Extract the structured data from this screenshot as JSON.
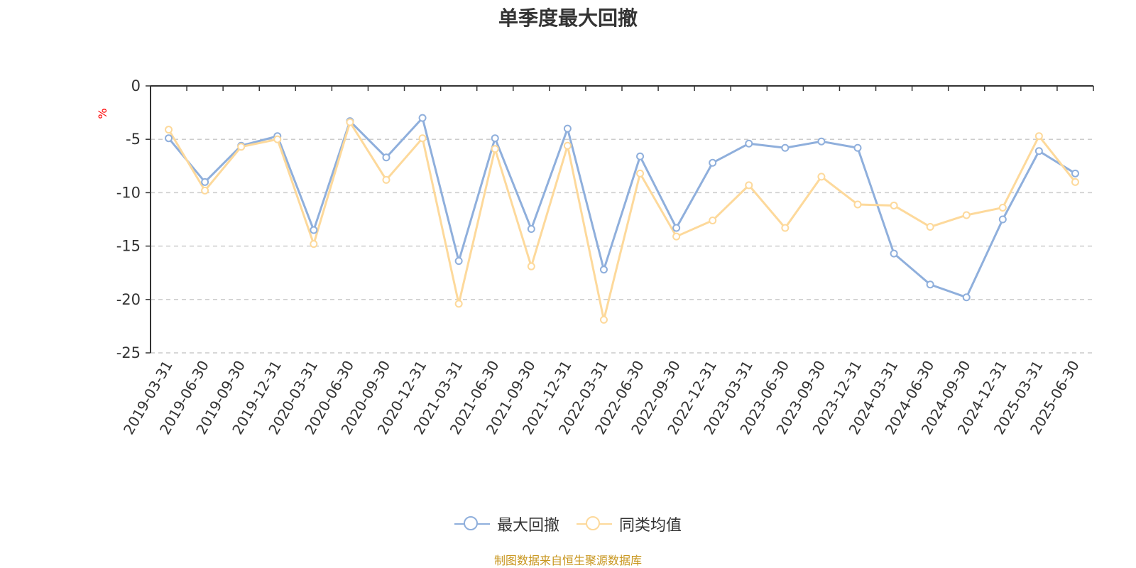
{
  "chart_data": {
    "type": "line",
    "title": "单季度最大回撤",
    "ylabel": "%",
    "ylim": [
      -25,
      0
    ],
    "yticks": [
      0,
      -5,
      -10,
      -15,
      -20,
      -25
    ],
    "grid": true,
    "legend_position": "bottom",
    "categories": [
      "2019-03-31",
      "2019-06-30",
      "2019-09-30",
      "2019-12-31",
      "2020-03-31",
      "2020-06-30",
      "2020-09-30",
      "2020-12-31",
      "2021-03-31",
      "2021-06-30",
      "2021-09-30",
      "2021-12-31",
      "2022-03-31",
      "2022-06-30",
      "2022-09-30",
      "2022-12-31",
      "2023-03-31",
      "2023-06-30",
      "2023-09-30",
      "2023-12-31",
      "2024-03-31",
      "2024-06-30",
      "2024-09-30",
      "2024-12-31",
      "2025-03-31",
      "2025-06-30"
    ],
    "series": [
      {
        "name": "最大回撤",
        "color": "#8fafdc",
        "values": [
          -4.9,
          -9.0,
          -5.6,
          -4.7,
          -13.5,
          -3.3,
          -6.7,
          -3.0,
          -16.4,
          -4.9,
          -13.4,
          -4.0,
          -17.2,
          -6.6,
          -13.3,
          -7.2,
          -5.4,
          -5.8,
          -5.2,
          -5.8,
          -15.7,
          -18.6,
          -19.8,
          -12.5,
          -6.1,
          -8.2
        ]
      },
      {
        "name": "同类均值",
        "color": "#fdd99b",
        "values": [
          -4.1,
          -9.8,
          -5.7,
          -5.0,
          -14.8,
          -3.4,
          -8.8,
          -4.9,
          -20.4,
          -5.9,
          -16.9,
          -5.6,
          -21.9,
          -8.2,
          -14.1,
          -12.6,
          -9.3,
          -13.3,
          -8.5,
          -11.1,
          -11.2,
          -13.2,
          -12.1,
          -11.4,
          -4.7,
          -9.0
        ]
      }
    ]
  },
  "source_note": "制图数据来自恒生聚源数据库"
}
